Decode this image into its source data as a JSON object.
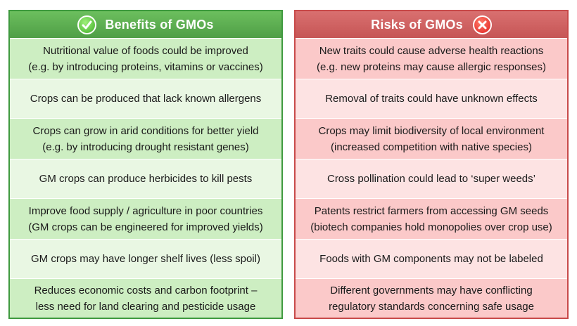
{
  "benefits": {
    "title": "Benefits of GMOs",
    "icon": "check-icon",
    "rows": [
      {
        "line1": "Nutritional value of foods could be improved",
        "line2": "(e.g. by introducing proteins, vitamins or vaccines)"
      },
      {
        "line1": "Crops can be produced that lack known allergens",
        "line2": ""
      },
      {
        "line1": "Crops can grow in arid conditions for better yield",
        "line2": "(e.g. by introducing drought resistant genes)"
      },
      {
        "line1": "GM crops can produce herbicides to kill pests",
        "line2": ""
      },
      {
        "line1": "Improve food supply / agriculture in poor countries",
        "line2": "(GM crops can be engineered for improved yields)"
      },
      {
        "line1": "GM crops may have longer shelf lives (less spoil)",
        "line2": ""
      },
      {
        "line1": "Reduces economic costs and carbon footprint –",
        "line2": "less need for land clearing and pesticide usage"
      }
    ]
  },
  "risks": {
    "title": "Risks of GMOs",
    "icon": "x-icon",
    "rows": [
      {
        "line1": "New traits could cause adverse health reactions",
        "line2": "(e.g. new proteins may cause allergic responses)"
      },
      {
        "line1": "Removal of traits could have unknown effects",
        "line2": ""
      },
      {
        "line1": "Crops may limit biodiversity of local environment",
        "line2": "(increased competition with native species)"
      },
      {
        "line1": "Cross pollination could lead to ‘super weeds’",
        "line2": ""
      },
      {
        "line1": "Patents restrict farmers from accessing GM seeds",
        "line2": "(biotech companies hold monopolies over crop use)"
      },
      {
        "line1": "Foods with GM components may not be labeled",
        "line2": ""
      },
      {
        "line1": "Different governments may have conflicting",
        "line2": "regulatory standards concerning safe usage"
      }
    ]
  },
  "colors": {
    "benefit_accent": "#4f9e46",
    "risk_accent": "#c65555"
  }
}
